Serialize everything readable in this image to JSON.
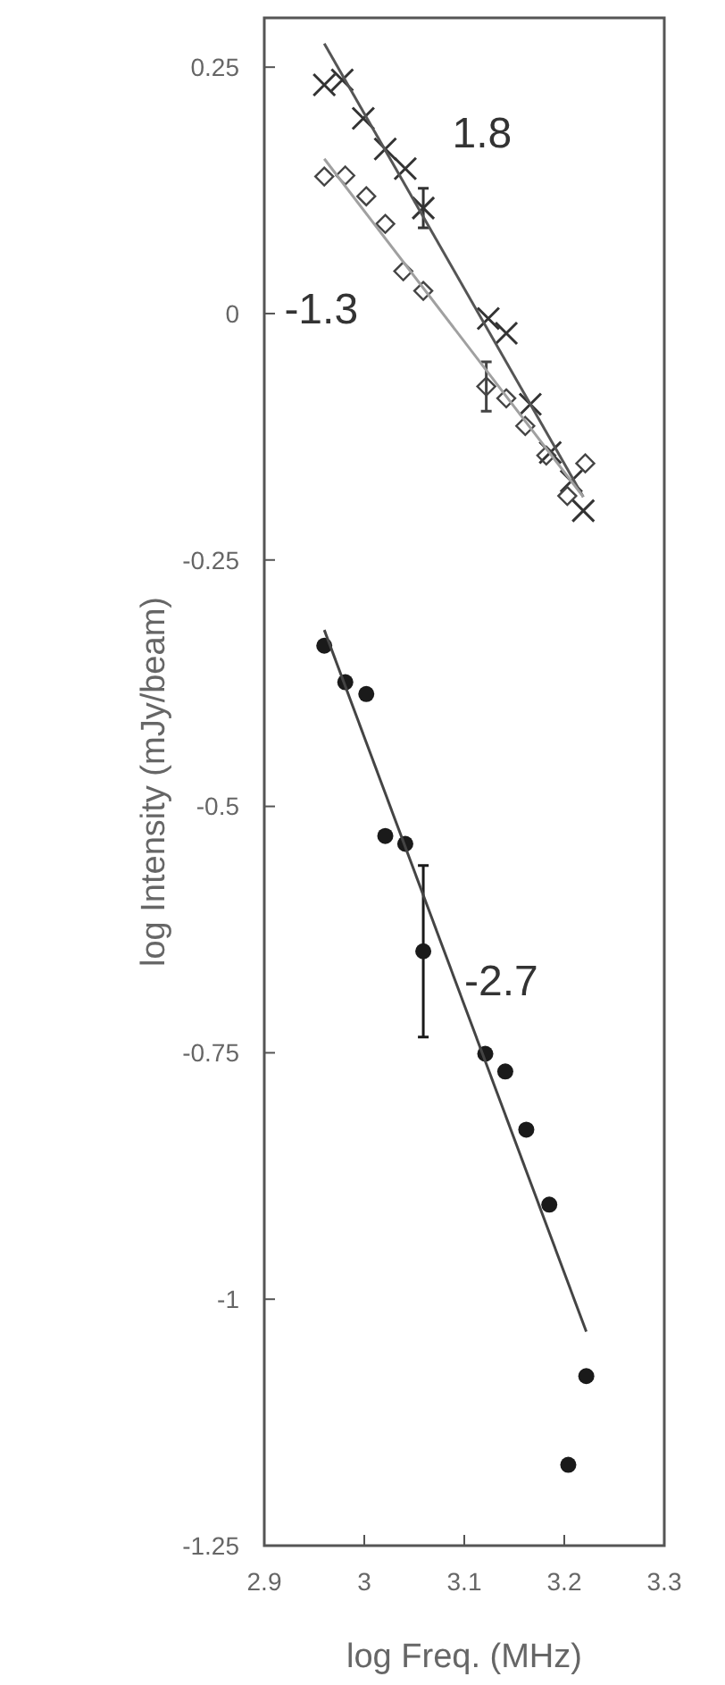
{
  "chart_data": {
    "type": "scatter",
    "xlabel": "log Freq. (MHz)",
    "ylabel": "log Intensity (mJy/beam)",
    "xlim": [
      2.9,
      3.3
    ],
    "ylim": [
      -1.25,
      0.3
    ],
    "xticks": [
      2.9,
      3,
      3.1,
      3.2,
      3.3
    ],
    "yticks": [
      0.25,
      0,
      -0.25,
      -0.5,
      -0.75,
      -1,
      -1.25
    ],
    "grid": false,
    "series": [
      {
        "marker": "cross",
        "color": "#333333",
        "x": [
          2.96,
          2.978,
          2.999,
          3.021,
          3.041,
          3.059,
          3.124,
          3.142,
          3.166,
          3.186,
          3.207,
          3.219
        ],
        "values": [
          0.232,
          0.237,
          0.198,
          0.167,
          0.147,
          0.107,
          -0.005,
          -0.02,
          -0.092,
          -0.141,
          -0.17,
          -0.2
        ],
        "errors": [
          null,
          null,
          null,
          null,
          null,
          0.02,
          null,
          null,
          null,
          null,
          null,
          null
        ]
      },
      {
        "marker": "diamond",
        "color": "#444444",
        "x": [
          2.96,
          2.981,
          3.002,
          3.021,
          3.039,
          3.059,
          3.122,
          3.142,
          3.161,
          3.182,
          3.221,
          3.203
        ],
        "values": [
          0.139,
          0.14,
          0.119,
          0.091,
          0.043,
          0.023,
          -0.074,
          -0.086,
          -0.114,
          -0.144,
          -0.152,
          -0.185
        ],
        "errors": [
          null,
          null,
          null,
          null,
          null,
          null,
          0.025,
          null,
          null,
          null,
          null,
          null
        ]
      },
      {
        "marker": "circle",
        "color": "#1a1a1a",
        "x": [
          2.96,
          2.981,
          3.002,
          3.021,
          3.041,
          3.059,
          3.121,
          3.141,
          3.162,
          3.185,
          3.222,
          3.204
        ],
        "values": [
          -0.337,
          -0.374,
          -0.386,
          -0.53,
          -0.538,
          -0.647,
          -0.751,
          -0.769,
          -0.828,
          -0.904,
          -1.078,
          -1.168
        ],
        "errors": [
          null,
          null,
          null,
          null,
          null,
          0.087,
          null,
          null,
          null,
          null,
          null,
          null
        ]
      },
      {
        "type": "line",
        "marker": "none",
        "color": "#555555",
        "x": [
          2.96,
          3.219
        ],
        "values": [
          0.274,
          -0.186
        ]
      },
      {
        "type": "line",
        "marker": "none",
        "color": "#a0a0a0",
        "x": [
          2.96,
          3.219
        ],
        "values": [
          0.157,
          -0.186
        ]
      },
      {
        "type": "line",
        "marker": "none",
        "color": "#444444",
        "x": [
          2.96,
          3.222
        ],
        "values": [
          -0.321,
          -1.033
        ]
      }
    ],
    "annotations": [
      "1.8",
      "-1.3",
      "-2.7"
    ]
  }
}
